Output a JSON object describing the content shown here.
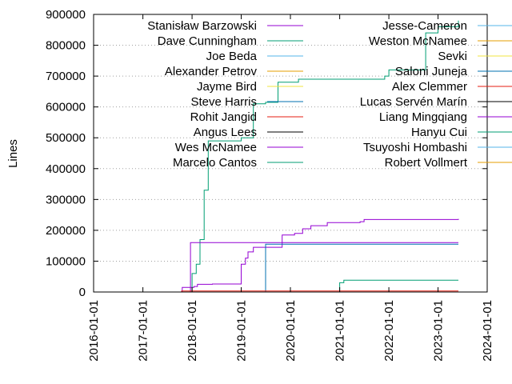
{
  "chart_data": {
    "type": "line",
    "title": "",
    "xlabel": "",
    "ylabel": "Lines",
    "xlim": [
      "2016-01-01",
      "2024-01-01"
    ],
    "ylim": [
      0,
      900000
    ],
    "x_ticks": [
      "2016-01-01",
      "2017-01-01",
      "2018-01-01",
      "2019-01-01",
      "2020-01-01",
      "2021-01-01",
      "2022-01-01",
      "2023-01-01",
      "2024-01-01"
    ],
    "y_ticks": [
      0,
      100000,
      200000,
      300000,
      400000,
      500000,
      600000,
      700000,
      800000,
      900000
    ],
    "y_tick_labels": [
      "0",
      "100000",
      "200000",
      "300000",
      "400000",
      "500000",
      "600000",
      "700000",
      "800000",
      "900000"
    ],
    "grid": "horizontal-dotted",
    "legend_placement": "top, two columns",
    "series": [
      {
        "name": "Stanisław Barzowski",
        "color": "#9400d3",
        "points": [
          [
            "2016-01-01",
            0
          ],
          [
            "2017-10-01",
            0
          ],
          [
            "2017-10-20",
            15000
          ],
          [
            "2018-01-15",
            18000
          ],
          [
            "2018-02-10",
            25000
          ],
          [
            "2018-06-01",
            26000
          ],
          [
            "2018-12-25",
            26000
          ],
          [
            "2019-01-01",
            90000
          ],
          [
            "2019-02-01",
            110000
          ],
          [
            "2019-02-20",
            130000
          ],
          [
            "2019-04-01",
            145000
          ],
          [
            "2019-10-20",
            145000
          ],
          [
            "2019-11-01",
            185000
          ],
          [
            "2020-02-01",
            190000
          ],
          [
            "2020-04-01",
            205000
          ],
          [
            "2020-06-01",
            215000
          ],
          [
            "2020-10-01",
            225000
          ],
          [
            "2021-06-01",
            228000
          ],
          [
            "2021-07-01",
            235000
          ],
          [
            "2023-06-01",
            237000
          ]
        ]
      },
      {
        "name": "Dave Cunningham",
        "color": "#009e73",
        "points": [
          [
            "2016-01-01",
            0
          ],
          [
            "2017-12-01",
            0
          ],
          [
            "2018-01-01",
            60000
          ],
          [
            "2018-02-01",
            90000
          ],
          [
            "2018-03-01",
            170000
          ],
          [
            "2018-04-01",
            330000
          ],
          [
            "2018-05-01",
            490000
          ],
          [
            "2018-10-01",
            490000
          ],
          [
            "2019-01-01",
            500000
          ],
          [
            "2019-04-01",
            610000
          ],
          [
            "2019-07-01",
            615000
          ],
          [
            "2019-10-01",
            680000
          ],
          [
            "2020-03-01",
            690000
          ],
          [
            "2021-01-01",
            690000
          ],
          [
            "2021-12-01",
            700000
          ],
          [
            "2022-01-01",
            720000
          ],
          [
            "2022-06-01",
            720000
          ],
          [
            "2022-10-01",
            840000
          ],
          [
            "2023-01-01",
            860000
          ],
          [
            "2023-06-01",
            880000
          ]
        ]
      },
      {
        "name": "Joe Beda",
        "color": "#56b4e9",
        "points": [
          [
            "2016-01-01",
            0
          ],
          [
            "2023-06-01",
            0
          ]
        ]
      },
      {
        "name": "Alexander Petrov",
        "color": "#e69f00",
        "points": [
          [
            "2016-01-01",
            0
          ],
          [
            "2023-06-01",
            0
          ]
        ]
      },
      {
        "name": "Jayme Bird",
        "color": "#f0e442",
        "points": [
          [
            "2016-01-01",
            0
          ],
          [
            "2023-06-01",
            0
          ]
        ]
      },
      {
        "name": "Steve Harris",
        "color": "#0072b2",
        "points": [
          [
            "2016-01-01",
            0
          ],
          [
            "2019-06-20",
            0
          ],
          [
            "2019-07-01",
            155000
          ],
          [
            "2023-06-01",
            155000
          ]
        ]
      },
      {
        "name": "Rohit Jangid",
        "color": "#e51e10",
        "points": [
          [
            "2016-01-01",
            0
          ],
          [
            "2023-06-01",
            0
          ]
        ]
      },
      {
        "name": "Angus Lees",
        "color": "#000000",
        "points": [
          [
            "2016-01-01",
            0
          ],
          [
            "2023-06-01",
            0
          ]
        ]
      },
      {
        "name": "Wes McNamee",
        "color": "#9400d3",
        "points": [
          [
            "2016-01-01",
            0
          ],
          [
            "2017-12-01",
            0
          ],
          [
            "2017-12-20",
            160000
          ],
          [
            "2023-06-01",
            160000
          ]
        ]
      },
      {
        "name": "Marcelo Cantos",
        "color": "#009e73",
        "points": [
          [
            "2016-01-01",
            0
          ],
          [
            "2020-12-25",
            0
          ],
          [
            "2021-01-01",
            30000
          ],
          [
            "2021-02-01",
            38000
          ],
          [
            "2023-06-01",
            38000
          ]
        ]
      },
      {
        "name": "Jesse-Cameron",
        "color": "#56b4e9",
        "points": [
          [
            "2016-01-01",
            0
          ],
          [
            "2023-06-01",
            0
          ]
        ]
      },
      {
        "name": "Weston McNamee",
        "color": "#e69f00",
        "points": [
          [
            "2016-01-01",
            0
          ],
          [
            "2023-06-01",
            0
          ]
        ]
      },
      {
        "name": "Sevki",
        "color": "#f0e442",
        "points": [
          [
            "2016-01-01",
            0
          ],
          [
            "2023-06-01",
            0
          ]
        ]
      },
      {
        "name": "Saloni Juneja",
        "color": "#0072b2",
        "points": [
          [
            "2016-01-01",
            0
          ],
          [
            "2023-06-01",
            0
          ]
        ]
      },
      {
        "name": "Alex Clemmer",
        "color": "#e51e10",
        "points": [
          [
            "2016-01-01",
            0
          ],
          [
            "2017-10-01",
            0
          ],
          [
            "2017-10-15",
            3000
          ],
          [
            "2023-06-01",
            3000
          ]
        ]
      },
      {
        "name": "Lucas Servén Marín",
        "color": "#000000",
        "points": [
          [
            "2016-01-01",
            0
          ],
          [
            "2023-06-01",
            0
          ]
        ]
      },
      {
        "name": "Liang Mingqiang",
        "color": "#9400d3",
        "points": [
          [
            "2016-01-01",
            0
          ],
          [
            "2023-06-01",
            0
          ]
        ]
      },
      {
        "name": "Hanyu Cui",
        "color": "#009e73",
        "points": [
          [
            "2016-01-01",
            0
          ],
          [
            "2023-06-01",
            0
          ]
        ]
      },
      {
        "name": "Tsuyoshi Hombashi",
        "color": "#56b4e9",
        "points": [
          [
            "2016-01-01",
            0
          ],
          [
            "2023-06-01",
            0
          ]
        ]
      },
      {
        "name": "Robert Vollmert",
        "color": "#e69f00",
        "points": [
          [
            "2016-01-01",
            0
          ],
          [
            "2023-06-01",
            0
          ]
        ]
      }
    ]
  }
}
